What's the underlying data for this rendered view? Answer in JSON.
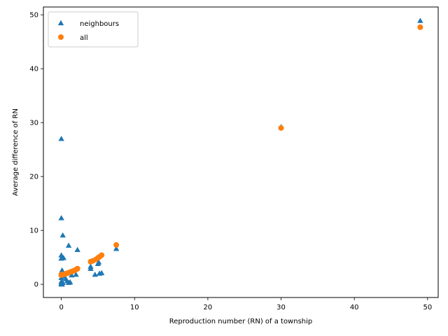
{
  "chart_data": {
    "type": "scatter",
    "xlabel": "Reproduction number (RN) of a township",
    "ylabel": "Average difference of RN",
    "xlim": [
      -2.45,
      51.45
    ],
    "ylim": [
      -2.45,
      51.45
    ],
    "xticks": [
      0,
      10,
      20,
      30,
      40,
      50
    ],
    "yticks": [
      0,
      10,
      20,
      30,
      40,
      50
    ],
    "grid": false,
    "legend_position": "upper-left",
    "series": [
      {
        "name": "neighbours",
        "marker": "triangle",
        "color": "#1f77b4",
        "points": [
          [
            0,
            27.0
          ],
          [
            0,
            12.3
          ],
          [
            0.2,
            9.1
          ],
          [
            1.0,
            7.2
          ],
          [
            2.2,
            6.4
          ],
          [
            7.5,
            6.6
          ],
          [
            0,
            5.4
          ],
          [
            0,
            4.8
          ],
          [
            0.3,
            4.9
          ],
          [
            0.1,
            2.6
          ],
          [
            0,
            1.9
          ],
          [
            0,
            1.2
          ],
          [
            0.4,
            1.5
          ],
          [
            0.6,
            1.0
          ],
          [
            0.8,
            0.6
          ],
          [
            1.0,
            0.3
          ],
          [
            1.2,
            0.4
          ],
          [
            1.4,
            1.7
          ],
          [
            2.0,
            1.8
          ],
          [
            0,
            0.5
          ],
          [
            0,
            0.2
          ],
          [
            0,
            0.0
          ],
          [
            0.1,
            0.0
          ],
          [
            0.2,
            0.3
          ],
          [
            4.0,
            3.3
          ],
          [
            4.0,
            2.9
          ],
          [
            4.6,
            1.8
          ],
          [
            5.0,
            3.8
          ],
          [
            5.1,
            4.1
          ],
          [
            5.2,
            2.0
          ],
          [
            5.5,
            2.1
          ],
          [
            30.0,
            29.2
          ],
          [
            49.0,
            48.9
          ]
        ]
      },
      {
        "name": "all",
        "marker": "circle",
        "color": "#ff7f0e",
        "points": [
          [
            0,
            1.7
          ],
          [
            0,
            1.8
          ],
          [
            0.1,
            1.75
          ],
          [
            0.3,
            1.85
          ],
          [
            0.5,
            1.9
          ],
          [
            0.7,
            2.0
          ],
          [
            0.9,
            2.1
          ],
          [
            1.1,
            2.2
          ],
          [
            1.3,
            2.3
          ],
          [
            1.5,
            2.4
          ],
          [
            1.7,
            2.5
          ],
          [
            1.9,
            2.65
          ],
          [
            2.1,
            2.8
          ],
          [
            2.2,
            2.9
          ],
          [
            4.0,
            4.2
          ],
          [
            4.3,
            4.35
          ],
          [
            4.7,
            4.6
          ],
          [
            5.0,
            4.9
          ],
          [
            5.2,
            5.1
          ],
          [
            5.5,
            5.4
          ],
          [
            7.5,
            7.3
          ],
          [
            30.0,
            29.0
          ],
          [
            49.0,
            47.7
          ]
        ]
      }
    ]
  }
}
